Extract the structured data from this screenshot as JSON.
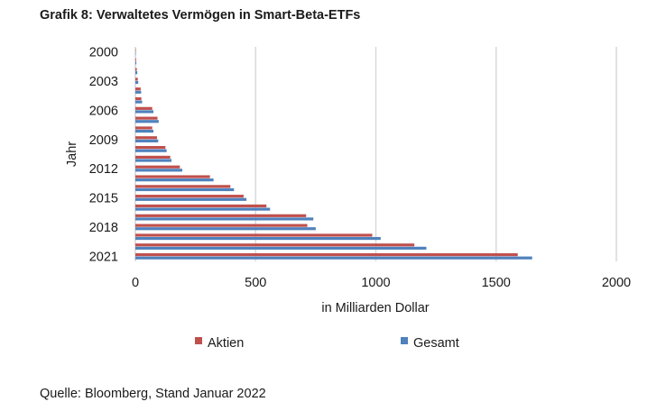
{
  "chart_data": {
    "type": "bar",
    "orientation": "horizontal",
    "title": "Grafik 8: Verwaltetes Vermögen in Smart-Beta-ETFs",
    "xlabel": "in Milliarden Dollar",
    "ylabel": "Jahr",
    "xlim": [
      0,
      2000
    ],
    "x_ticks": [
      0,
      500,
      1000,
      1500,
      2000
    ],
    "categories": [
      "2000",
      "2001",
      "2002",
      "2003",
      "2004",
      "2005",
      "2006",
      "2007",
      "2008",
      "2009",
      "2010",
      "2011",
      "2012",
      "2013",
      "2014",
      "2015",
      "2016",
      "2017",
      "2018",
      "2019",
      "2020",
      "2021"
    ],
    "y_tick_labels": [
      "2000",
      "2003",
      "2006",
      "2009",
      "2012",
      "2015",
      "2018",
      "2021"
    ],
    "series": [
      {
        "name": "Aktien",
        "color": "#C0504D",
        "values": [
          1,
          3,
          6,
          10,
          22,
          25,
          70,
          92,
          70,
          90,
          125,
          145,
          185,
          310,
          395,
          450,
          545,
          710,
          715,
          985,
          1160,
          1590
        ]
      },
      {
        "name": "Gesamt",
        "color": "#4F81BD",
        "values": [
          1,
          4,
          8,
          12,
          24,
          28,
          75,
          97,
          75,
          95,
          130,
          150,
          195,
          325,
          410,
          462,
          560,
          740,
          750,
          1020,
          1210,
          1650
        ]
      }
    ],
    "legend": [
      "Aktien",
      "Gesamt"
    ],
    "legend_position": "bottom",
    "grid": true
  },
  "source_text": "Quelle: Bloomberg, Stand Januar 2022"
}
